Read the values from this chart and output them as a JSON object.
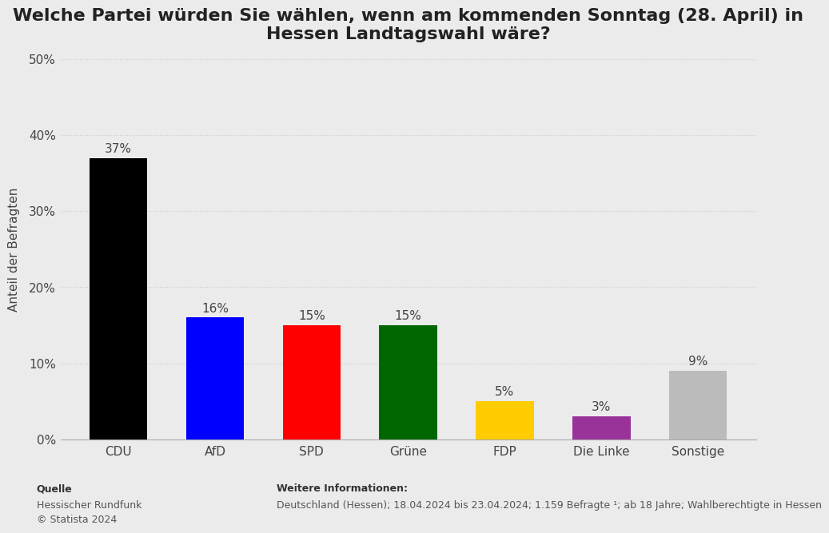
{
  "title": "Welche Partei würden Sie wählen, wenn am kommenden Sonntag (28. April) in\nHessen Landtagswahl wäre?",
  "categories": [
    "CDU",
    "AfD",
    "SPD",
    "Grüne",
    "FDP",
    "Die Linke",
    "Sonstige"
  ],
  "values": [
    37,
    16,
    15,
    15,
    5,
    3,
    9
  ],
  "bar_colors": [
    "#000000",
    "#0000ff",
    "#ff0000",
    "#006600",
    "#ffcc00",
    "#993399",
    "#bbbbbb"
  ],
  "ylabel": "Anteil der Befragten",
  "ylim": [
    0,
    50
  ],
  "yticks": [
    0,
    10,
    20,
    30,
    40,
    50
  ],
  "background_color": "#ebebeb",
  "plot_bg_color": "#ebebeb",
  "title_fontsize": 16,
  "label_fontsize": 11,
  "tick_fontsize": 11,
  "bar_label_fontsize": 11,
  "source_label": "Quelle",
  "source_line1": "Hessischer Rundfunk",
  "source_line2": "© Statista 2024",
  "info_label": "Weitere Informationen:",
  "info_text": "Deutschland (Hessen); 18.04.2024 bis 23.04.2024; 1.159 Befragte ¹; ab 18 Jahre; Wahlberechtigte in Hessen"
}
